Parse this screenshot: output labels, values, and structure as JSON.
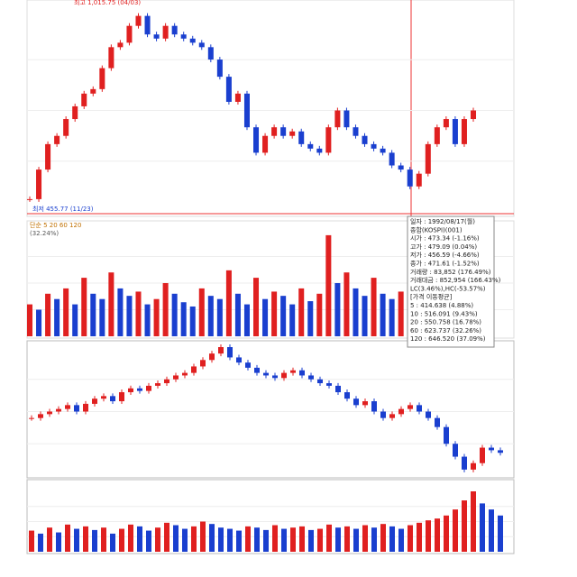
{
  "chart_data": [
    {
      "type": "candlestick",
      "high_label": "최고 1,015.75 (04/03)",
      "low_label": "최저 455.77 (11/23)",
      "ylim": [
        440,
        1030
      ],
      "values": [
        477,
        563,
        637,
        661,
        710,
        747,
        784,
        797,
        858,
        919,
        932,
        981,
        1010,
        956,
        944,
        981,
        956,
        944,
        932,
        919,
        883,
        833,
        760,
        784,
        686,
        612,
        661,
        686,
        661,
        674,
        637,
        624,
        612,
        686,
        735,
        686,
        661,
        637,
        624,
        612,
        575,
        563,
        514,
        551,
        637,
        686,
        710,
        637,
        710,
        735
      ]
    },
    {
      "type": "bar",
      "legend": "단순 5 20 60 120",
      "subtitle": "(32.24%)",
      "ylim": [
        0,
        100
      ],
      "values": [
        30,
        25,
        40,
        35,
        45,
        30,
        55,
        40,
        35,
        60,
        45,
        38,
        42,
        30,
        35,
        50,
        40,
        32,
        28,
        45,
        38,
        35,
        62,
        40,
        30,
        55,
        35,
        42,
        38,
        30,
        45,
        33,
        40,
        95,
        50,
        60,
        45,
        38,
        55,
        40,
        35,
        42,
        48,
        30,
        36,
        40,
        45,
        38,
        42,
        35
      ]
    },
    {
      "type": "candlestick",
      "ylim": [
        0,
        100
      ],
      "values": [
        45,
        48,
        50,
        52,
        55,
        50,
        56,
        60,
        62,
        58,
        65,
        68,
        66,
        70,
        72,
        75,
        78,
        80,
        85,
        90,
        95,
        100,
        92,
        88,
        84,
        80,
        78,
        76,
        80,
        82,
        78,
        75,
        72,
        70,
        65,
        60,
        55,
        58,
        50,
        45,
        48,
        52,
        55,
        50,
        45,
        38,
        25,
        15,
        5,
        10,
        22,
        20,
        18
      ]
    },
    {
      "type": "bar",
      "ylim": [
        0,
        100
      ],
      "values": [
        35,
        30,
        40,
        32,
        45,
        38,
        42,
        36,
        40,
        30,
        38,
        45,
        42,
        35,
        40,
        48,
        44,
        38,
        42,
        50,
        46,
        40,
        38,
        35,
        42,
        40,
        36,
        44,
        38,
        40,
        42,
        36,
        38,
        45,
        40,
        42,
        38,
        44,
        40,
        46,
        42,
        38,
        44,
        48,
        52,
        55,
        60,
        70,
        85,
        100,
        80,
        70,
        60
      ]
    }
  ],
  "tooltip": [
    "일자 : 1992/08/17(월)",
    "종합(KOSPI)(001)",
    "시가 : 473.34 (-1.16%)",
    "고가 : 479.09 (0.04%)",
    "저가 : 456.59 (-4.66%)",
    "종가 : 471.61 (-1.52%)",
    "거래량 : 83,852 (176.49%)",
    "거래대금 : 852,954 (166.43%)",
    "LC(3.46%),HC(-53.57%)",
    "[가격 이동평균]",
    "5 : 414.638 (4.88%)",
    "10 : 516.091 (9.43%)",
    "20 : 550.758 (16.78%)",
    "60 : 623.737 (32.26%)",
    "120 : 646.520 (37.09%)"
  ]
}
